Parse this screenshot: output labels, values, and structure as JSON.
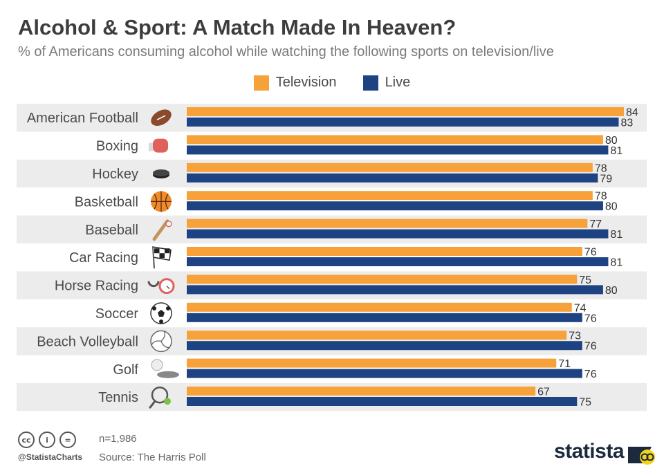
{
  "header": {
    "title": "Alcohol & Sport: A Match Made In Heaven?",
    "subtitle": "% of Americans consuming alcohol while watching the following sports on television/live"
  },
  "colors": {
    "television": "#f7a13b",
    "live": "#1e4382",
    "row_band": "#ececec",
    "label": "#4a4a4a"
  },
  "chart_data": {
    "type": "bar",
    "orientation": "horizontal",
    "categories": [
      "American Football",
      "Boxing",
      "Hockey",
      "Basketball",
      "Baseball",
      "Car Racing",
      "Horse Racing",
      "Soccer",
      "Beach Volleyball",
      "Golf",
      "Tennis"
    ],
    "icons": [
      "football-icon",
      "boxing-glove-icon",
      "hockey-puck-icon",
      "basketball-icon",
      "baseball-bat-icon",
      "checkered-flag-icon",
      "horseshoe-stopwatch-icon",
      "soccer-ball-icon",
      "volleyball-icon",
      "golf-ball-icon",
      "tennis-racket-icon"
    ],
    "series": [
      {
        "name": "Television",
        "values": [
          84,
          80,
          78,
          78,
          77,
          76,
          75,
          74,
          73,
          71,
          67
        ]
      },
      {
        "name": "Live",
        "values": [
          83,
          81,
          79,
          80,
          81,
          81,
          80,
          76,
          76,
          76,
          75
        ]
      }
    ],
    "xlim": [
      0,
      100
    ],
    "legend_position": "top-center",
    "grid": false,
    "data_labels": true
  },
  "footer": {
    "sample": "n=1,986",
    "source": "Source: The Harris Poll",
    "handle": "@StatistaCharts",
    "brand": "statista",
    "license_icons": [
      "cc",
      "i",
      "="
    ]
  }
}
